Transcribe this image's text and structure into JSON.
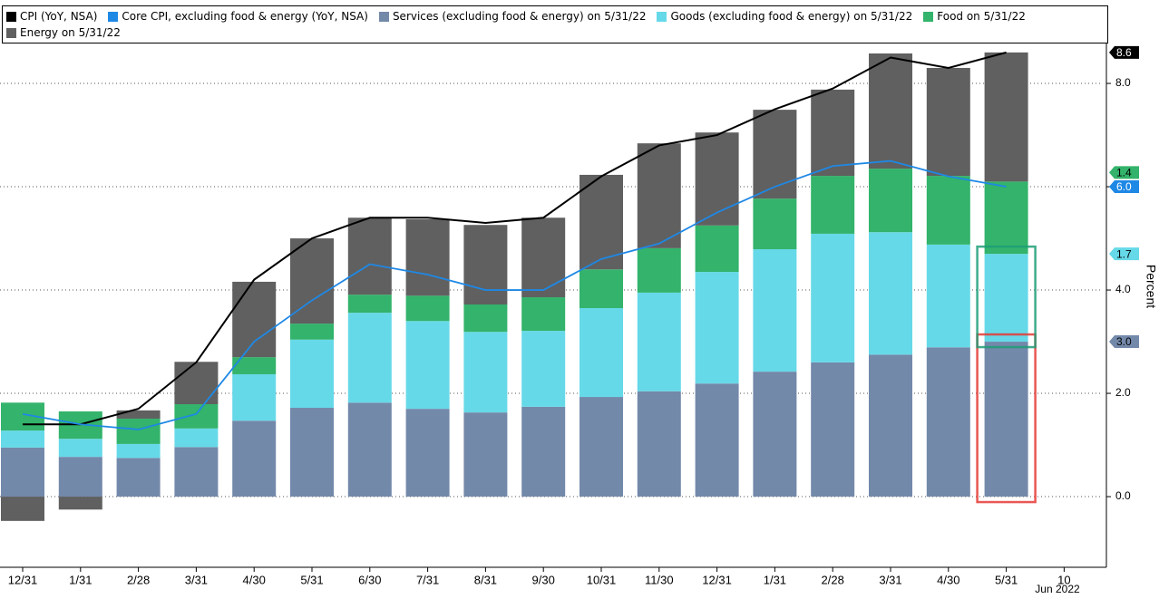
{
  "chart_data": {
    "type": "bar",
    "stacked": true,
    "categories": [
      "12/31",
      "1/31",
      "2/28",
      "3/31",
      "4/30",
      "5/31",
      "6/30",
      "7/31",
      "8/31",
      "9/30",
      "10/31",
      "11/30",
      "12/31",
      "1/31",
      "2/28",
      "3/31",
      "4/30",
      "5/31",
      "10"
    ],
    "x_annotation": "Jun 2022",
    "y_label": "Percent",
    "ylim": [
      -1.35,
      9.1
    ],
    "yticks": [
      {
        "value": 0,
        "label": "0.0"
      },
      {
        "value": 2,
        "label": "2.0"
      },
      {
        "value": 4,
        "label": "4.0"
      },
      {
        "value": 6,
        "label": "6.0"
      },
      {
        "value": 8,
        "label": "8.0"
      }
    ],
    "grid": true,
    "legend": "top",
    "series": [
      {
        "name": "CPI (YoY, NSA)",
        "type": "line",
        "color": "#000000",
        "values": [
          1.4,
          1.4,
          1.7,
          2.6,
          4.2,
          5.0,
          5.4,
          5.4,
          5.3,
          5.4,
          6.2,
          6.8,
          7.0,
          7.5,
          7.9,
          8.5,
          8.3,
          8.6,
          null
        ]
      },
      {
        "name": "Core CPI, excluding food & energy (YoY, NSA)",
        "type": "line",
        "color": "#1e88e5",
        "values": [
          1.6,
          1.4,
          1.3,
          1.6,
          3.0,
          3.8,
          4.5,
          4.3,
          4.0,
          4.0,
          4.6,
          4.9,
          5.5,
          6.0,
          6.4,
          6.5,
          6.2,
          6.0,
          null
        ],
        "value_labels": [
          null,
          null,
          null,
          null,
          null,
          null,
          null,
          null,
          null,
          null,
          null,
          null,
          null,
          null,
          null,
          null,
          null,
          "6.0",
          null
        ]
      },
      {
        "name": "Services (excluding food & energy) on 5/31/22",
        "type": "bar",
        "color": "#7389aa",
        "values": [
          0.95,
          0.77,
          0.75,
          0.96,
          1.47,
          1.72,
          1.82,
          1.7,
          1.63,
          1.74,
          1.93,
          2.04,
          2.19,
          2.42,
          2.6,
          2.75,
          2.89,
          3,
          null
        ],
        "value_labels": [
          null,
          null,
          null,
          null,
          null,
          null,
          null,
          null,
          null,
          null,
          null,
          null,
          null,
          null,
          null,
          null,
          null,
          "3.0",
          null
        ]
      },
      {
        "name": "Goods (excluding food & energy) on 5/31/22",
        "type": "bar",
        "color": "#66d9e8",
        "values": [
          0.33,
          0.35,
          0.27,
          0.36,
          0.9,
          1.32,
          1.74,
          1.7,
          1.56,
          1.47,
          1.72,
          1.91,
          2.16,
          2.37,
          2.49,
          2.37,
          1.99,
          1.7,
          null
        ]
      },
      {
        "name": "Food on 5/31/22",
        "type": "bar",
        "color": "#33b36b",
        "values": [
          0.54,
          0.53,
          0.49,
          0.47,
          0.33,
          0.31,
          0.35,
          0.49,
          0.53,
          0.65,
          0.75,
          0.86,
          0.9,
          0.98,
          1.12,
          1.23,
          1.33,
          1.4,
          null
        ]
      },
      {
        "name": "Energy on 5/31/22",
        "type": "bar",
        "color": "#606060",
        "values": [
          -0.47,
          -0.25,
          0.16,
          0.82,
          1.46,
          1.65,
          1.49,
          1.48,
          1.54,
          1.54,
          1.83,
          2.03,
          1.8,
          1.72,
          1.67,
          2.23,
          2.09,
          2.5,
          null
        ]
      }
    ]
  }
}
